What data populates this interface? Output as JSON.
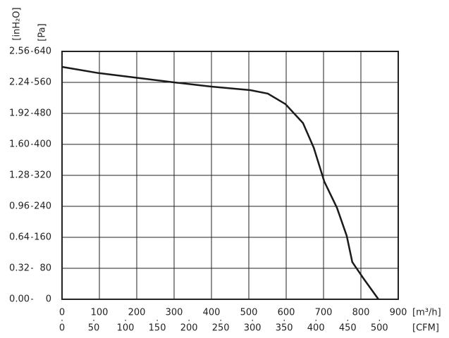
{
  "chart_data": {
    "type": "line",
    "x_label": "[m³/h]",
    "x2_label": "[CFM]",
    "y_label": "[Pa]",
    "y2_label": "[inH₂O]",
    "x": [
      0,
      98,
      300,
      400,
      504,
      551,
      598,
      645,
      674,
      702,
      736,
      762,
      777,
      806,
      847
    ],
    "values": [
      600,
      584,
      560,
      549,
      540,
      531,
      504,
      455,
      391,
      304,
      236,
      164,
      96,
      55,
      0
    ],
    "color": "#1a1a1a",
    "xlim": [
      0,
      900
    ],
    "xticks": [
      0,
      100,
      200,
      300,
      400,
      500,
      600,
      700,
      800,
      900
    ],
    "x2lim": [
      0,
      529.7
    ],
    "x2ticks": [
      0,
      50,
      100,
      150,
      200,
      250,
      300,
      350,
      400,
      450,
      500
    ],
    "ylim": [
      0,
      640
    ],
    "yticks": [
      0,
      80,
      160,
      240,
      320,
      400,
      480,
      560,
      640
    ],
    "y2lim": [
      0,
      2.56
    ],
    "y2ticks": [
      {
        "value": 0,
        "label": "0.00"
      },
      0.32,
      0.64,
      0.96,
      1.28,
      {
        "value": 1.6,
        "label": "1.60"
      },
      1.92,
      2.24,
      2.56
    ],
    "grid": true
  }
}
